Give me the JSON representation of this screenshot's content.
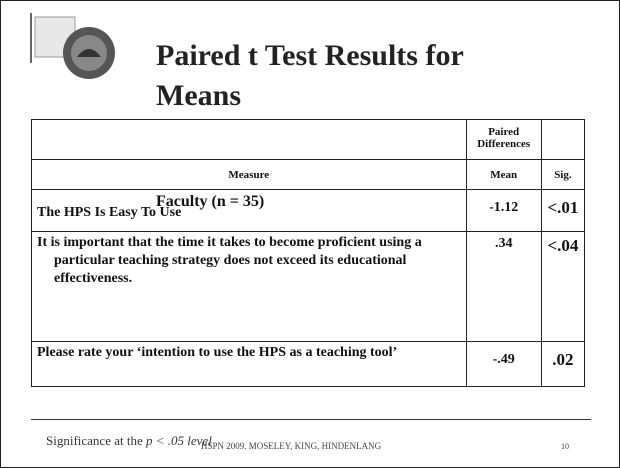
{
  "slide": {
    "title_line1": "Paired t Test Results for",
    "title_line2": "Means",
    "table": {
      "group_header": "Paired Differences",
      "columns": [
        "Measure",
        "Mean",
        "Sig."
      ],
      "subgroup": "Faculty (n = 35)",
      "rows": [
        [
          "The HPS Is Easy To Use",
          "-1.12",
          "<.01"
        ],
        [
          "It is important that the time it takes to become proficient using a particular teaching strategy does not exceed its educational effectiveness.",
          ".34",
          "<.04"
        ],
        [
          "Please rate your ‘intention to use the HPS as a teaching tool’",
          "-.49",
          ".02"
        ]
      ]
    },
    "footnote_lead": "Significance at the",
    "footnote_italic": "p < .05 level",
    "footer": "HSPN 2009. MOSELEY, KING, HINDENLANG",
    "page_number": "10"
  }
}
